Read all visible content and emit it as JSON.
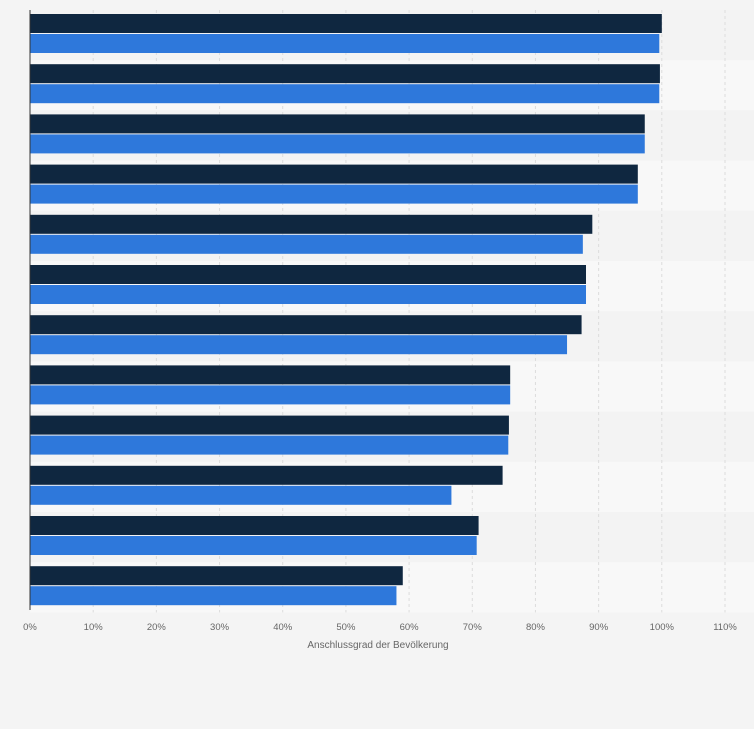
{
  "chart_data": {
    "type": "bar",
    "orientation": "horizontal",
    "title": "",
    "xlabel": "Anschlussgrad der Bevölkerung",
    "ylabel": "",
    "xlim": [
      0,
      110
    ],
    "x_ticks": [
      0,
      10,
      20,
      30,
      40,
      50,
      60,
      70,
      80,
      90,
      100,
      110
    ],
    "x_tick_labels": [
      "0%",
      "10%",
      "20%",
      "30%",
      "40%",
      "50%",
      "60%",
      "70%",
      "80%",
      "90%",
      "100%",
      "110%"
    ],
    "grid": true,
    "legend": "none",
    "categories": [
      "",
      "",
      "",
      "",
      "",
      "",
      "",
      "",
      "",
      "",
      "",
      ""
    ],
    "series": [
      {
        "color": "#0f2740",
        "values": [
          100,
          99.7,
          97.3,
          96.2,
          89,
          88,
          87.3,
          76,
          75.8,
          74.8,
          71,
          59
        ]
      },
      {
        "color": "#2e78db",
        "values": [
          99.6,
          99.6,
          97.3,
          96.2,
          87.5,
          88,
          85,
          76,
          75.7,
          66.7,
          70.7,
          58
        ]
      }
    ]
  }
}
